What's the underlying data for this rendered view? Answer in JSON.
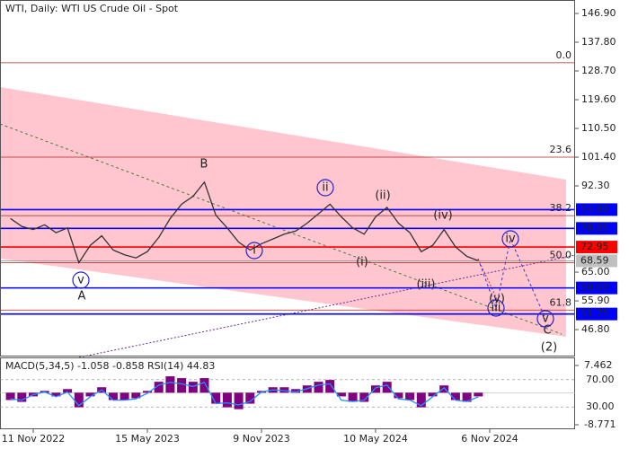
{
  "chart_data": {
    "type": "line",
    "title": "WTI, Daily:  WTI US Crude Oil - Spot",
    "categories": [
      null,
      null,
      "11 Nov 2022",
      null,
      null,
      null,
      null,
      null,
      null,
      null,
      null,
      null,
      "15 May 2023",
      null,
      null,
      null,
      null,
      null,
      null,
      null,
      null,
      null,
      "9 Nov 2023",
      null,
      null,
      null,
      null,
      null,
      null,
      null,
      null,
      null,
      "10 May 2024",
      null,
      null,
      null,
      null,
      null,
      null,
      null,
      null,
      null,
      "6 Nov 2024"
    ],
    "values": [
      82.0,
      79.5,
      78.5,
      80.0,
      77.5,
      79.0,
      68.0,
      73.5,
      76.5,
      72.0,
      70.5,
      69.5,
      71.5,
      76.0,
      82.0,
      86.5,
      89.0,
      93.5,
      83.0,
      79.0,
      74.5,
      72.0,
      74.0,
      75.5,
      77.0,
      78.0,
      80.5,
      83.5,
      86.5,
      82.5,
      79.0,
      77.0,
      82.5,
      85.5,
      80.5,
      77.5,
      71.5,
      73.5,
      78.5,
      73.0,
      70.0,
      68.59,
      null
    ],
    "color": "#333333",
    "ylim": [
      38.57,
      151.17
    ],
    "yticks": [
      {
        "value": 146.9,
        "label": "146.90"
      },
      {
        "value": 137.8,
        "label": "137.80"
      },
      {
        "value": 128.7,
        "label": "128.70"
      },
      {
        "value": 119.6,
        "label": "119.60"
      },
      {
        "value": 110.5,
        "label": "110.50"
      },
      {
        "value": 101.4,
        "label": "101.40"
      },
      {
        "value": 92.3,
        "label": "92.30"
      },
      {
        "value": 65,
        "label": "65.00"
      },
      {
        "value": 55.9,
        "label": "55.90"
      },
      {
        "value": 46.8,
        "label": "46.80"
      }
    ],
    "levels": [
      {
        "value": 84.8,
        "label": "84.80",
        "color": "#0000ff"
      },
      {
        "value": 78.85,
        "label": "78.85",
        "color": "#0000ff"
      },
      {
        "value": 72.95,
        "label": "72.95",
        "color": "#ff0000"
      },
      {
        "value": 68.59,
        "label": "68.59",
        "color": "#c0c0c0"
      },
      {
        "value": 60,
        "label": "60.00",
        "color": "#0000ff"
      },
      {
        "value": 51.75,
        "label": "51.75",
        "color": "#0000ff"
      }
    ],
    "fib_levels": [
      {
        "value": 131.3,
        "label": "0.0"
      },
      {
        "value": 101.4,
        "label": "23.6"
      },
      {
        "value": 82.9,
        "label": "38.2"
      },
      {
        "value": 68.0,
        "label": "50.0"
      },
      {
        "value": 53.0,
        "label": "61.8"
      }
    ],
    "fib_color": "#b22222",
    "annotations": [
      {
        "text": "A",
        "color": "#c0392b"
      },
      {
        "text": "B",
        "color": "#c0392b"
      },
      {
        "text": "C",
        "color": "#c0392b"
      },
      {
        "text": "(2)",
        "color": "#1e8c1e"
      },
      {
        "text": "v",
        "color": "#2222cc"
      },
      {
        "text": "i",
        "color": "#2222cc"
      },
      {
        "text": "ii",
        "color": "#2222cc"
      },
      {
        "text": "iii",
        "color": "#2222cc"
      },
      {
        "text": "iv",
        "color": "#2222cc"
      },
      {
        "text": "v",
        "color": "#2222cc"
      },
      {
        "text": "(i)",
        "color": "#c0392b"
      },
      {
        "text": "(ii)",
        "color": "#c0392b"
      },
      {
        "text": "(iii)",
        "color": "#c0392b"
      },
      {
        "text": "(iv)",
        "color": "#c0392b"
      },
      {
        "text": "(v)",
        "color": "#c0392b"
      }
    ],
    "indicator": {
      "title": "MACD(5,34,5) -1.058 -0.858 RSI(14) 44.83",
      "histogram": [
        -2,
        -2.5,
        -1,
        0.5,
        -1,
        1,
        -4,
        -1,
        1.5,
        -2,
        -2,
        -1.5,
        0.5,
        3,
        4.5,
        4,
        3,
        4,
        -3,
        -4,
        -4.5,
        -3,
        0.5,
        1.5,
        1.5,
        1,
        2,
        3,
        3.5,
        -1,
        -2.5,
        -2.5,
        2,
        3,
        -1.5,
        -2,
        -4,
        -1,
        2,
        -2,
        -2.5,
        -1,
        null
      ],
      "histogram_color": "#800080",
      "ylim": [
        -9.509,
        9.184
      ],
      "yticks": [
        7.462,
        -8.771
      ],
      "rsi": [
        42,
        40,
        48,
        52,
        45,
        52,
        32,
        45,
        55,
        40,
        40,
        42,
        50,
        62,
        66,
        64,
        60,
        66,
        35,
        36,
        33,
        38,
        52,
        55,
        54,
        52,
        57,
        62,
        64,
        40,
        38,
        40,
        58,
        62,
        42,
        40,
        32,
        45,
        58,
        40,
        38,
        44.83,
        null
      ],
      "rsi_color": "#1e90ff",
      "y2lim": [
        0,
        100
      ],
      "y2ticks": [
        {
          "value": 70,
          "label": "70.00"
        },
        {
          "value": 30,
          "label": "30.00"
        }
      ]
    }
  }
}
